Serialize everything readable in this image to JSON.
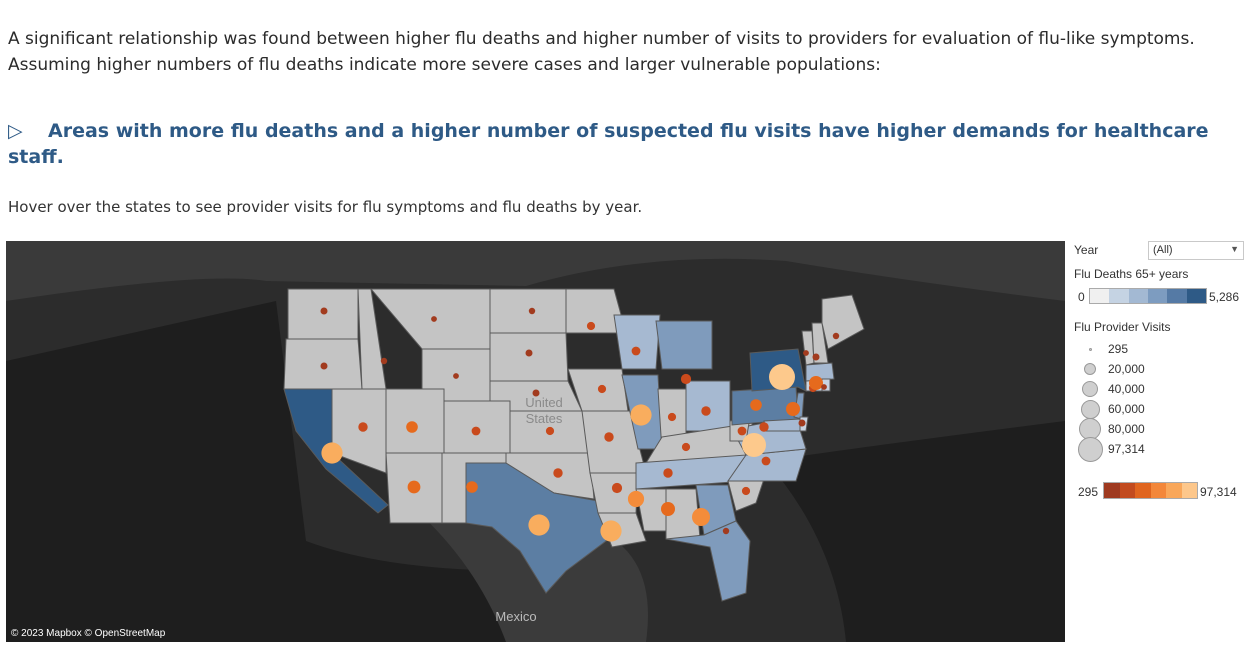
{
  "intro": {
    "line1": "A significant relationship was found between higher flu deaths and higher number of visits to providers for evaluation of flu-like symptoms.",
    "line2": "Assuming higher numbers of flu deaths indicate more severe cases and larger vulnerable populations:"
  },
  "callout": {
    "arrow": "▷",
    "text": "Areas with more flu deaths and a higher number of suspected flu visits have higher demands for healthcare staff."
  },
  "hint": "Hover over the states to see provider visits for flu symptoms and flu deaths by year.",
  "map": {
    "labels": {
      "country_us": "United States",
      "country_mexico": "Mexico"
    },
    "attribution": "© 2023 Mapbox © OpenStreetMap",
    "state_fill_scale": [
      "#f0f0f0",
      "#c8d3e0",
      "#a6b9d1",
      "#7f9bbc",
      "#5c7ea3",
      "#2e5a86"
    ],
    "state_default_fill": "#c4c4c4",
    "visit_color_scale": [
      "#a23b1e",
      "#c94a1c",
      "#e66a1d",
      "#f48c3a",
      "#f9ad5e",
      "#fdc98c"
    ]
  },
  "legend": {
    "year_label": "Year",
    "year_value": "(All)",
    "deaths_title": "Flu Deaths 65+ years",
    "deaths_min": "0",
    "deaths_max": "5,286",
    "deaths_colors": [
      "#f0f0f0",
      "#c5d3e3",
      "#a3b9d3",
      "#7d9cc0",
      "#557aa5",
      "#2e5a86"
    ],
    "visits_title": "Flu Provider Visits",
    "visit_sizes": [
      "295",
      "20,000",
      "40,000",
      "60,000",
      "80,000",
      "97,314"
    ],
    "visits_min": "295",
    "visits_max": "97,314",
    "visits_colors": [
      "#9f3a20",
      "#c24b1f",
      "#e0651f",
      "#f3873a",
      "#f9a75a",
      "#fdc78b"
    ]
  },
  "chart_data": {
    "type": "map",
    "region": "United States",
    "measures": [
      "Flu Deaths 65+ years",
      "Flu Provider Visits"
    ],
    "color_measure": "Flu Deaths 65+ years",
    "size_measure": "Flu Provider Visits",
    "deaths_range": [
      0,
      5286
    ],
    "visits_range": [
      295,
      97314
    ],
    "states": [
      {
        "state": "WA",
        "deaths_level": 0,
        "visits": 2000
      },
      {
        "state": "OR",
        "deaths_level": 0,
        "visits": 2000
      },
      {
        "state": "CA",
        "deaths_level": 5,
        "visits": 60000
      },
      {
        "state": "ID",
        "deaths_level": 0,
        "visits": 1500
      },
      {
        "state": "NV",
        "deaths_level": 0,
        "visits": 6000
      },
      {
        "state": "MT",
        "deaths_level": 0,
        "visits": 1000
      },
      {
        "state": "WY",
        "deaths_level": 0,
        "visits": 1000
      },
      {
        "state": "UT",
        "deaths_level": 0,
        "visits": 12000
      },
      {
        "state": "AZ",
        "deaths_level": 0,
        "visits": 16000
      },
      {
        "state": "CO",
        "deaths_level": 0,
        "visits": 5000
      },
      {
        "state": "NM",
        "deaths_level": 0,
        "visits": 12000
      },
      {
        "state": "ND",
        "deaths_level": 0,
        "visits": 1500
      },
      {
        "state": "SD",
        "deaths_level": 0,
        "visits": 2000
      },
      {
        "state": "NE",
        "deaths_level": 0,
        "visits": 2000
      },
      {
        "state": "KS",
        "deaths_level": 0,
        "visits": 4000
      },
      {
        "state": "OK",
        "deaths_level": 0,
        "visits": 6000
      },
      {
        "state": "TX",
        "deaths_level": 4,
        "visits": 60000
      },
      {
        "state": "MN",
        "deaths_level": 0,
        "visits": 4000
      },
      {
        "state": "IA",
        "deaths_level": 0,
        "visits": 4000
      },
      {
        "state": "MO",
        "deaths_level": 0,
        "visits": 6000
      },
      {
        "state": "AR",
        "deaths_level": 0,
        "visits": 8000
      },
      {
        "state": "LA",
        "deaths_level": 0,
        "visits": 60000
      },
      {
        "state": "WI",
        "deaths_level": 2,
        "visits": 5000
      },
      {
        "state": "IL",
        "deaths_level": 3,
        "visits": 60000
      },
      {
        "state": "MI",
        "deaths_level": 3,
        "visits": 8000
      },
      {
        "state": "IN",
        "deaths_level": 0,
        "visits": 4000
      },
      {
        "state": "OH",
        "deaths_level": 2,
        "visits": 6000
      },
      {
        "state": "KY",
        "deaths_level": 0,
        "visits": 4000
      },
      {
        "state": "TN",
        "deaths_level": 2,
        "visits": 6000
      },
      {
        "state": "MS",
        "deaths_level": 0,
        "visits": 30000
      },
      {
        "state": "AL",
        "deaths_level": 0,
        "visits": 20000
      },
      {
        "state": "GA",
        "deaths_level": 3,
        "visits": 40000
      },
      {
        "state": "FL",
        "deaths_level": 3,
        "visits": 1500
      },
      {
        "state": "SC",
        "deaths_level": 0,
        "visits": 4000
      },
      {
        "state": "NC",
        "deaths_level": 2,
        "visits": 5000
      },
      {
        "state": "VA",
        "deaths_level": 2,
        "visits": 80000
      },
      {
        "state": "WV",
        "deaths_level": 0,
        "visits": 5000
      },
      {
        "state": "PA",
        "deaths_level": 4,
        "visits": 12000
      },
      {
        "state": "NY",
        "deaths_level": 5,
        "visits": 97314
      },
      {
        "state": "NJ",
        "deaths_level": 3,
        "visits": 20000
      },
      {
        "state": "MD",
        "deaths_level": 2,
        "visits": 6000
      },
      {
        "state": "DE",
        "deaths_level": 1,
        "visits": 2000
      },
      {
        "state": "CT",
        "deaths_level": 1,
        "visits": 4000
      },
      {
        "state": "MA",
        "deaths_level": 2,
        "visits": 20000
      },
      {
        "state": "RI",
        "deaths_level": 1,
        "visits": 1000
      },
      {
        "state": "VT",
        "deaths_level": 0,
        "visits": 1000
      },
      {
        "state": "NH",
        "deaths_level": 0,
        "visits": 2000
      },
      {
        "state": "ME",
        "deaths_level": 0,
        "visits": 1500
      }
    ]
  }
}
